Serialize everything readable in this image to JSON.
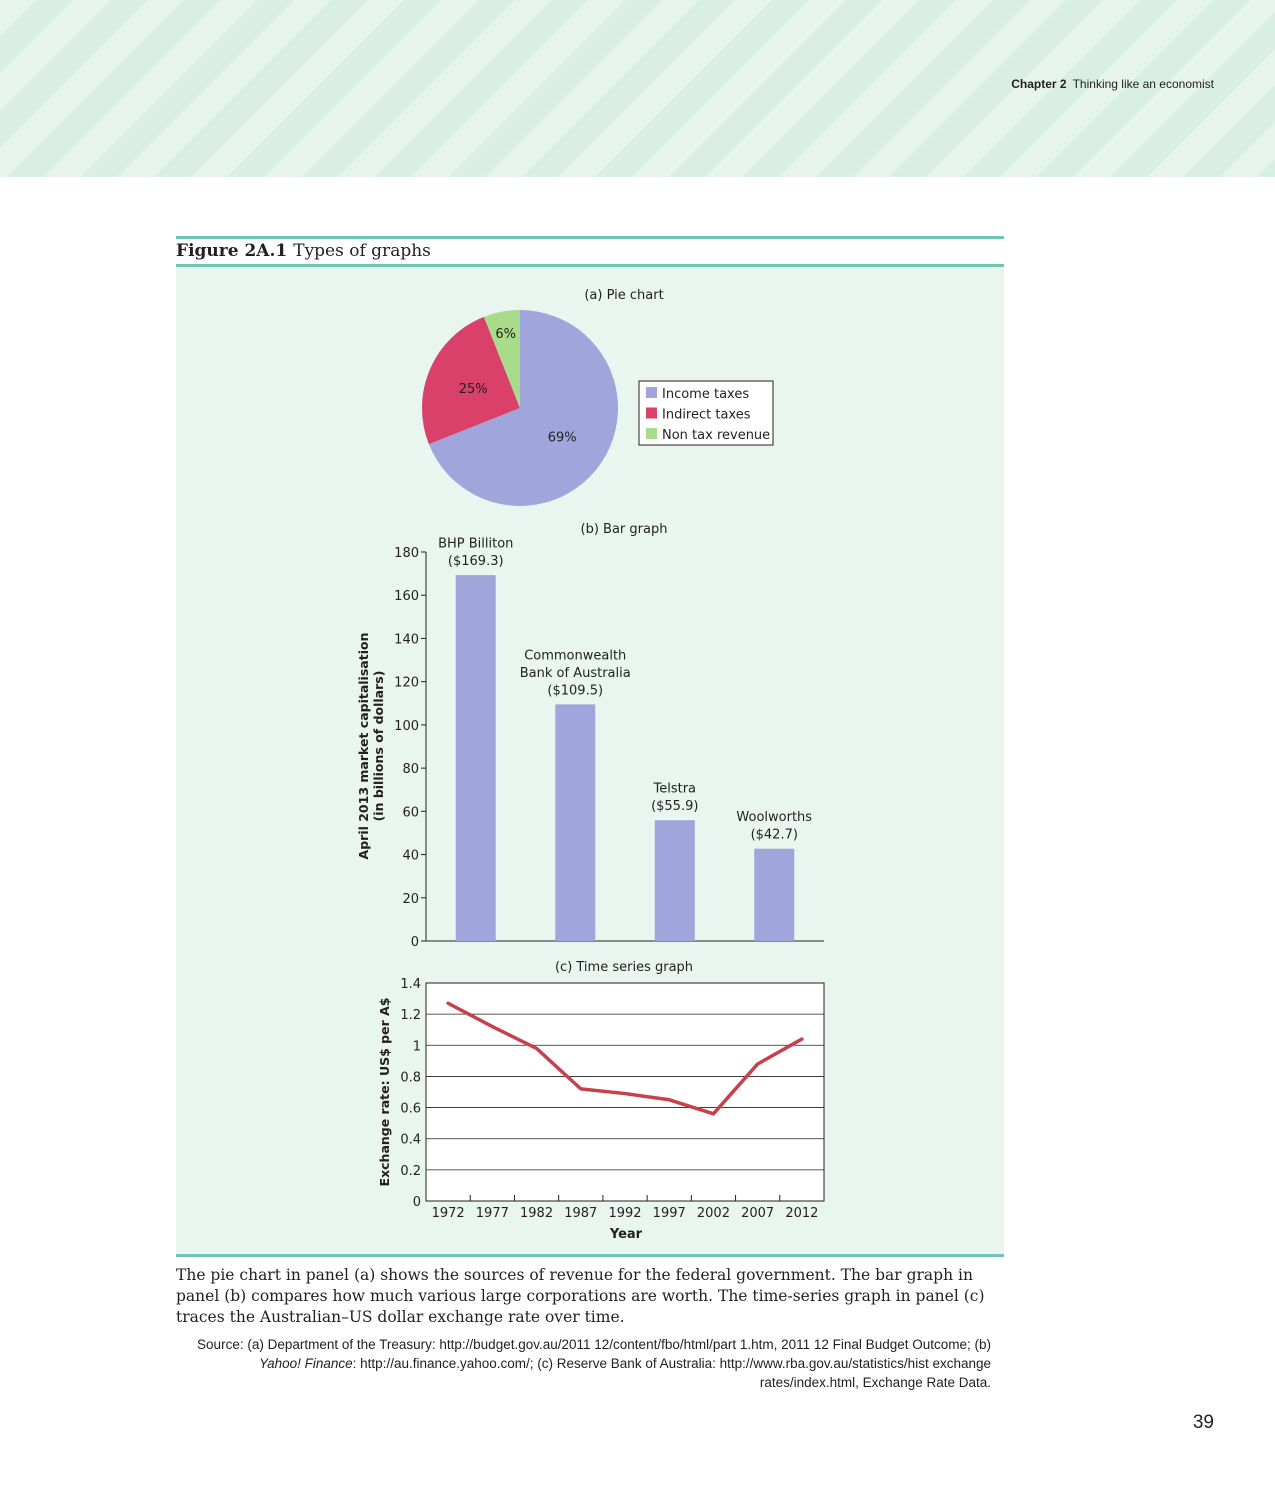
{
  "running_head": {
    "chapter": "Chapter 2",
    "title": "Thinking like an economist"
  },
  "figure": {
    "number": "Figure 2A.1",
    "title": "Types of graphs"
  },
  "colors": {
    "income": "#a0a6dc",
    "indirect": "#d9406a",
    "nontax": "#a8dc8a",
    "bar": "#a0a6dc",
    "line": "#c8404b",
    "panel_bg": "#e8f6ef",
    "rule": "#6cc6b1"
  },
  "chart_data": [
    {
      "type": "pie",
      "title": "(a) Pie chart",
      "slices": [
        {
          "name": "Income taxes",
          "value": 69,
          "label": "69%"
        },
        {
          "name": "Indirect taxes",
          "value": 25,
          "label": "25%"
        },
        {
          "name": "Non tax revenue",
          "value": 6,
          "label": "6%"
        }
      ],
      "legend": "right"
    },
    {
      "type": "bar",
      "title": "(b) Bar graph",
      "categories": [
        "BHP Billiton",
        "Commonwealth Bank of Australia",
        "Telstra",
        "Woolworths"
      ],
      "bar_labels": [
        [
          "BHP Billiton",
          "($169.3)"
        ],
        [
          "Commonwealth",
          "Bank of Australia",
          "($109.5)"
        ],
        [
          "Telstra",
          "($55.9)"
        ],
        [
          "Woolworths",
          "($42.7)"
        ]
      ],
      "values": [
        169.3,
        109.5,
        55.9,
        42.7
      ],
      "ylabel": [
        "April 2013 market capitalisation",
        "(in billions of dollars)"
      ],
      "ylim": [
        0,
        180
      ],
      "yticks": [
        "0",
        "20",
        "40",
        "60",
        "80",
        "100",
        "120",
        "140",
        "160",
        "180"
      ]
    },
    {
      "type": "line",
      "title": "(c) Time series graph",
      "x": [
        1972,
        1977,
        1982,
        1987,
        1992,
        1997,
        2002,
        2007,
        2012
      ],
      "xticks": [
        "1972",
        "1977",
        "1982",
        "1987",
        "1992",
        "1997",
        "2002",
        "2007",
        "2012"
      ],
      "series": [
        {
          "values": [
            1.27,
            1.12,
            0.98,
            0.72,
            0.69,
            0.65,
            0.56,
            0.88,
            1.04
          ]
        }
      ],
      "xlabel": "Year",
      "ylabel": "Exchange rate: US$ per A$",
      "ylim": [
        0,
        1.4
      ],
      "yticks": [
        "0",
        "0.2",
        "0.4",
        "0.6",
        "0.8",
        "1",
        "1.2",
        "1.4"
      ],
      "grid": true
    }
  ],
  "description": "The pie chart in panel (a) shows the sources of revenue for the federal government. The bar graph in panel (b) compares how much various large corporations are worth. The time-series graph in panel (c) traces the Australian–US dollar exchange rate over time.",
  "source": {
    "prefix": "Source: (a) Department of the Treasury: http://budget.gov.au/2011 12/content/fbo/html/part 1.htm, 2011 12 Final Budget Outcome; (b) ",
    "italic": "Yahoo! Finance",
    "suffix": ": http://au.finance.yahoo.com/; (c) Reserve Bank of Australia: http://www.rba.gov.au/statistics/hist exchange rates/index.html, Exchange Rate Data."
  },
  "page_number": "39"
}
